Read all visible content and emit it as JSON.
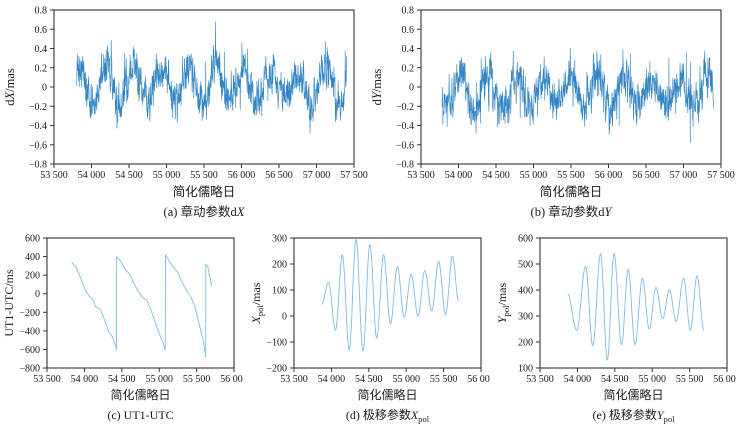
{
  "figure": {
    "background": "#ffffff",
    "xlabel_text": "简化儒略日"
  },
  "colors": {
    "line_top": "#1d78be",
    "line_bottom": "#7fbce2",
    "frame": "#333333",
    "text": "#1a1a1a"
  },
  "chart_data": [
    {
      "id": "a",
      "type": "line",
      "caption_parts": [
        {
          "t": "(a) 章动参数d"
        },
        {
          "t": "X",
          "style": "i"
        }
      ],
      "xlabel": "简化儒略日",
      "ylabel_parts": [
        {
          "t": "d"
        },
        {
          "t": "X",
          "style": "i"
        },
        {
          "t": "/mas"
        }
      ],
      "xlim": [
        53500,
        57500
      ],
      "ylim": [
        -0.8,
        0.8
      ],
      "xtick_values": [
        53500,
        54000,
        54500,
        55000,
        55500,
        56000,
        56500,
        57000,
        57500
      ],
      "xtick_labels": [
        "53 500",
        "54 000",
        "54 500",
        "55 000",
        "55 500",
        "56 000",
        "56 500",
        "57 000",
        "57 500"
      ],
      "ytick_values": [
        0.8,
        0.6,
        0.4,
        0.2,
        0,
        -0.2,
        -0.4,
        -0.6,
        -0.8
      ],
      "ytick_labels": [
        "0.8",
        "0.6",
        "0.4",
        "0.2",
        "0",
        "−0.2",
        "−0.4",
        "−0.6",
        "−0.8"
      ],
      "color_key": "line_top",
      "series": {
        "mode": "noisy",
        "seed": 42,
        "x_start": 53800,
        "x_end": 57400,
        "step": 2.5,
        "mean": 0.01,
        "annual_amplitude": 0.17,
        "annual_period": 365.25,
        "peak_day": 54200,
        "mod_period": 1500,
        "mod_depth": 0.25,
        "ar_coeff": 0.5,
        "noise_sigma": 0.095,
        "spike_prob": 0.012,
        "spike_min": 0.18,
        "spike_range": 0.3,
        "clip": [
          -0.72,
          0.73
        ]
      }
    },
    {
      "id": "b",
      "type": "line",
      "caption_parts": [
        {
          "t": "(b) 章动参数d"
        },
        {
          "t": "Y",
          "style": "i"
        }
      ],
      "xlabel": "简化儒略日",
      "ylabel_parts": [
        {
          "t": "d"
        },
        {
          "t": "Y",
          "style": "i"
        },
        {
          "t": "/mas"
        }
      ],
      "xlim": [
        53500,
        57500
      ],
      "ylim": [
        -0.8,
        0.8
      ],
      "xtick_values": [
        53500,
        54000,
        54500,
        55000,
        55500,
        56000,
        56500,
        57000,
        57500
      ],
      "xtick_labels": [
        "53 500",
        "54 000",
        "54 500",
        "55 000",
        "55 500",
        "56 000",
        "56 500",
        "57 000",
        "57 500"
      ],
      "ytick_values": [
        0.8,
        0.6,
        0.4,
        0.2,
        0,
        -0.2,
        -0.4,
        -0.6,
        -0.8
      ],
      "ytick_labels": [
        "0.8",
        "0.6",
        "0.4",
        "0.2",
        "0",
        "−0.2",
        "−0.4",
        "−0.6",
        "−0.8"
      ],
      "color_key": "line_top",
      "series": {
        "mode": "noisy",
        "seed": 9,
        "x_start": 53780,
        "x_end": 57400,
        "step": 2.5,
        "mean": -0.05,
        "annual_amplitude": 0.16,
        "annual_period": 365.25,
        "peak_day": 54030,
        "mod_period": 1700,
        "mod_depth": 0.25,
        "ar_coeff": 0.5,
        "noise_sigma": 0.095,
        "spike_prob": 0.012,
        "spike_min": 0.18,
        "spike_range": 0.3,
        "clip": [
          -0.72,
          0.74
        ]
      }
    },
    {
      "id": "c",
      "type": "line",
      "caption_parts": [
        {
          "t": "(c) UT1-UTC"
        }
      ],
      "xlabel": "简化儒略日",
      "ylabel_parts": [
        {
          "t": "UT1-UTC/ms"
        }
      ],
      "xlim": [
        53500,
        56000
      ],
      "ylim": [
        -800,
        600
      ],
      "xtick_values": [
        53500,
        54000,
        54500,
        55000,
        55500,
        56000
      ],
      "xtick_labels": [
        "53 500",
        "54 000",
        "54 500",
        "55 000",
        "55 500",
        "56 000"
      ],
      "ytick_values": [
        600,
        400,
        200,
        0,
        -200,
        -400,
        -600,
        -800
      ],
      "ytick_labels": [
        "600",
        "400",
        "200",
        "0",
        "−200",
        "−400",
        "−600",
        "−800"
      ],
      "color_key": "line_bottom",
      "series": {
        "mode": "polyline",
        "points": [
          [
            53830,
            340
          ],
          [
            53890,
            285
          ],
          [
            53960,
            150
          ],
          [
            54010,
            45
          ],
          [
            54060,
            -25
          ],
          [
            54110,
            -60
          ],
          [
            54150,
            -140
          ],
          [
            54210,
            -165
          ],
          [
            54260,
            -260
          ],
          [
            54320,
            -400
          ],
          [
            54370,
            -460
          ],
          [
            54410,
            -545
          ],
          [
            54428,
            -600
          ],
          [
            54430,
            400
          ],
          [
            54490,
            345
          ],
          [
            54540,
            265
          ],
          [
            54600,
            215
          ],
          [
            54660,
            115
          ],
          [
            54720,
            25
          ],
          [
            54770,
            -35
          ],
          [
            54830,
            -65
          ],
          [
            54890,
            -175
          ],
          [
            54950,
            -320
          ],
          [
            55010,
            -445
          ],
          [
            55050,
            -525
          ],
          [
            55082,
            -600
          ],
          [
            55084,
            420
          ],
          [
            55140,
            345
          ],
          [
            55200,
            275
          ],
          [
            55250,
            230
          ],
          [
            55310,
            115
          ],
          [
            55370,
            25
          ],
          [
            55420,
            -25
          ],
          [
            55480,
            -150
          ],
          [
            55540,
            -345
          ],
          [
            55590,
            -505
          ],
          [
            55622,
            -680
          ],
          [
            55624,
            320
          ],
          [
            55650,
            295
          ],
          [
            55700,
            80
          ]
        ]
      }
    },
    {
      "id": "d",
      "type": "line",
      "caption_parts": [
        {
          "t": "(d) 极移参数"
        },
        {
          "t": "X",
          "style": "i"
        },
        {
          "t": "pol",
          "style": "sub"
        }
      ],
      "xlabel": "简化儒略日",
      "ylabel_parts": [
        {
          "t": "X",
          "style": "i"
        },
        {
          "t": "pol",
          "style": "sub"
        },
        {
          "t": "/mas"
        }
      ],
      "xlim": [
        53500,
        56000
      ],
      "ylim": [
        -200,
        300
      ],
      "xtick_values": [
        53500,
        54000,
        54500,
        55000,
        55500,
        56000
      ],
      "xtick_labels": [
        "53 500",
        "54 000",
        "54 500",
        "55 000",
        "55 500",
        "56 000"
      ],
      "ytick_values": [
        300,
        200,
        100,
        0,
        -100,
        -200
      ],
      "ytick_labels": [
        "300",
        "200",
        "100",
        "0",
        "−100",
        "−200"
      ],
      "color_key": "line_bottom",
      "series": {
        "mode": "extremes",
        "points": [
          [
            53870,
            45
          ],
          [
            53962,
            130
          ],
          [
            54054,
            -55
          ],
          [
            54146,
            235
          ],
          [
            54238,
            -130
          ],
          [
            54330,
            295
          ],
          [
            54422,
            -135
          ],
          [
            54514,
            275
          ],
          [
            54606,
            -85
          ],
          [
            54698,
            235
          ],
          [
            54790,
            -30
          ],
          [
            54882,
            190
          ],
          [
            54974,
            -5
          ],
          [
            55066,
            160
          ],
          [
            55158,
            0
          ],
          [
            55250,
            175
          ],
          [
            55342,
            20
          ],
          [
            55434,
            210
          ],
          [
            55526,
            5
          ],
          [
            55618,
            230
          ],
          [
            55700,
            60
          ]
        ]
      }
    },
    {
      "id": "e",
      "type": "line",
      "caption_parts": [
        {
          "t": "(e) 极移参数"
        },
        {
          "t": "Y",
          "style": "i"
        },
        {
          "t": "pol",
          "style": "sub"
        }
      ],
      "xlabel": "简化儒略日",
      "ylabel_parts": [
        {
          "t": "Y",
          "style": "i"
        },
        {
          "t": "pol",
          "style": "sub"
        },
        {
          "t": "/mas"
        }
      ],
      "xlim": [
        53500,
        56000
      ],
      "ylim": [
        100,
        600
      ],
      "xtick_values": [
        53500,
        54000,
        54500,
        55000,
        55500,
        56000
      ],
      "xtick_labels": [
        "53 500",
        "54 000",
        "54 500",
        "55 000",
        "55 500",
        "56 000"
      ],
      "ytick_values": [
        600,
        500,
        400,
        300,
        200,
        100
      ],
      "ytick_labels": [
        "600",
        "500",
        "400",
        "300",
        "200",
        "100"
      ],
      "color_key": "line_bottom",
      "series": {
        "mode": "extremes",
        "points": [
          [
            53870,
            385
          ],
          [
            53990,
            245
          ],
          [
            54110,
            490
          ],
          [
            54205,
            185
          ],
          [
            54310,
            540
          ],
          [
            54400,
            130
          ],
          [
            54490,
            540
          ],
          [
            54590,
            190
          ],
          [
            54680,
            480
          ],
          [
            54770,
            190
          ],
          [
            54870,
            445
          ],
          [
            54960,
            250
          ],
          [
            55050,
            410
          ],
          [
            55140,
            290
          ],
          [
            55230,
            400
          ],
          [
            55320,
            280
          ],
          [
            55420,
            445
          ],
          [
            55510,
            245
          ],
          [
            55600,
            455
          ],
          [
            55690,
            245
          ]
        ]
      }
    }
  ]
}
